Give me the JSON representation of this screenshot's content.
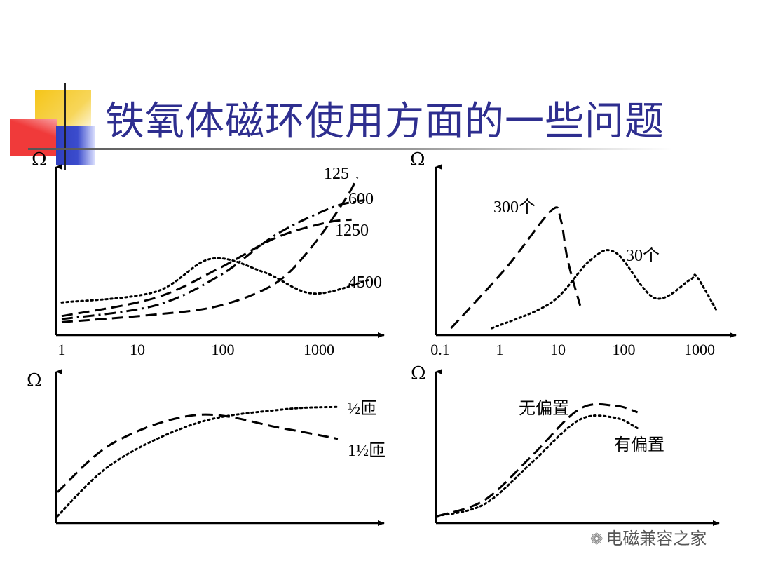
{
  "slide": {
    "title": "铁氧体磁环使用方面的一些问题",
    "watermark": "电磁兼容之家",
    "accent_colors": {
      "title": "#2e2e8f",
      "yellow": "#f5c518",
      "red": "#f03a3a",
      "blue": "#2f3fbf"
    }
  },
  "chart_data": [
    {
      "type": "line",
      "panel": "top-left",
      "ylabel": "Ω",
      "x_scale": "log",
      "x_ticks": [
        "1",
        "10",
        "100",
        "1000"
      ],
      "series": [
        {
          "name": "125",
          "style": "dash",
          "points": [
            [
              1,
              0.04
            ],
            [
              10,
              0.09
            ],
            [
              50,
              0.15
            ],
            [
              200,
              0.3
            ],
            [
              500,
              0.55
            ],
            [
              1100,
              0.85
            ],
            [
              1500,
              1.0
            ]
          ]
        },
        {
          "name": "600",
          "style": "dashdot",
          "points": [
            [
              1,
              0.06
            ],
            [
              10,
              0.15
            ],
            [
              50,
              0.35
            ],
            [
              200,
              0.62
            ],
            [
              800,
              0.8
            ],
            [
              1800,
              0.85
            ]
          ]
        },
        {
          "name": "1250",
          "style": "dash",
          "points": [
            [
              1,
              0.08
            ],
            [
              10,
              0.2
            ],
            [
              50,
              0.4
            ],
            [
              200,
              0.6
            ],
            [
              700,
              0.7
            ],
            [
              1300,
              0.72
            ]
          ]
        },
        {
          "name": "4500",
          "style": "dot",
          "points": [
            [
              1,
              0.17
            ],
            [
              10,
              0.24
            ],
            [
              40,
              0.46
            ],
            [
              150,
              0.37
            ],
            [
              500,
              0.23
            ],
            [
              2000,
              0.32
            ]
          ]
        }
      ]
    },
    {
      "type": "line",
      "panel": "top-right",
      "ylabel": "Ω",
      "x_scale": "log",
      "x_ticks": [
        "0.1",
        "1",
        "10",
        "100",
        "1000"
      ],
      "series": [
        {
          "name": "300个",
          "style": "dash",
          "points": [
            [
              0.14,
              0.0
            ],
            [
              1,
              0.4
            ],
            [
              5,
              0.78
            ],
            [
              7,
              0.72
            ],
            [
              9,
              0.45
            ],
            [
              14,
              0.15
            ]
          ]
        },
        {
          "name": "30个",
          "style": "dot",
          "points": [
            [
              0.6,
              0.0
            ],
            [
              5,
              0.17
            ],
            [
              20,
              0.45
            ],
            [
              50,
              0.5
            ],
            [
              200,
              0.2
            ],
            [
              700,
              0.32
            ],
            [
              900,
              0.34
            ],
            [
              1800,
              0.12
            ]
          ]
        }
      ]
    },
    {
      "type": "line",
      "panel": "bottom-left",
      "ylabel": "Ω",
      "x_scale": "linear",
      "x_ticks": [],
      "series": [
        {
          "name": "½匝",
          "style": "dot",
          "points": [
            [
              0,
              0.0
            ],
            [
              0.2,
              0.4
            ],
            [
              0.5,
              0.7
            ],
            [
              0.8,
              0.8
            ],
            [
              1.0,
              0.82
            ]
          ]
        },
        {
          "name": "1½匝",
          "style": "dash",
          "points": [
            [
              0,
              0.18
            ],
            [
              0.2,
              0.55
            ],
            [
              0.5,
              0.76
            ],
            [
              0.8,
              0.66
            ],
            [
              1.0,
              0.58
            ]
          ]
        }
      ]
    },
    {
      "type": "line",
      "panel": "bottom-right",
      "ylabel": "Ω",
      "x_scale": "linear",
      "x_ticks": [],
      "series": [
        {
          "name": "无偏置",
          "style": "dash",
          "points": [
            [
              0,
              0.0
            ],
            [
              0.2,
              0.12
            ],
            [
              0.4,
              0.45
            ],
            [
              0.6,
              0.8
            ],
            [
              0.75,
              0.83
            ],
            [
              0.85,
              0.78
            ]
          ]
        },
        {
          "name": "有偏置",
          "style": "dot",
          "points": [
            [
              0,
              0.0
            ],
            [
              0.2,
              0.09
            ],
            [
              0.4,
              0.4
            ],
            [
              0.6,
              0.72
            ],
            [
              0.75,
              0.74
            ],
            [
              0.85,
              0.66
            ]
          ]
        }
      ]
    }
  ]
}
